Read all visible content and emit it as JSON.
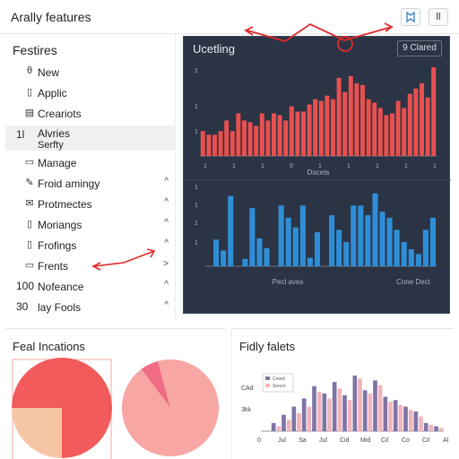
{
  "app": {
    "title": "Arally features"
  },
  "toolbar": {
    "btn1_icon": "bookmark-icon",
    "btn2_label": "ll"
  },
  "sidebar": {
    "title": "Festires",
    "items": [
      {
        "icon": "θ",
        "label": "New"
      },
      {
        "icon": "▯",
        "label": "Applic"
      },
      {
        "icon": "▤",
        "label": "Creariots"
      },
      {
        "num": "1l",
        "label": "Alvries",
        "label2": "Serfty"
      },
      {
        "icon": "▭",
        "label": "Manage"
      },
      {
        "icon": "✎",
        "label": "Froid amingy",
        "chev": "^"
      },
      {
        "icon": "✉",
        "label": "Protmectes",
        "chev": "^"
      },
      {
        "icon": "▯",
        "label": "Moriangs",
        "chev": "^"
      },
      {
        "icon": "▯",
        "label": "Frofings",
        "chev": "^"
      },
      {
        "icon": "▭",
        "label": "Frents",
        "chev": ">"
      },
      {
        "num": "100",
        "label": "Nofeance",
        "chev": "^"
      },
      {
        "num": "30",
        "label": "lay Fools",
        "chev": "^"
      }
    ]
  },
  "panel": {
    "title": "Ucetling",
    "button": "9 Clared",
    "top_xlabel": "Docets",
    "bottom_xlabel_left": "Pecl aves",
    "bottom_xlabel_right": "Cone Dect"
  },
  "cards": {
    "left_title": "Feal Incations",
    "right_title": "Fidly falets"
  },
  "colors": {
    "red": "#e8504f",
    "blue": "#2f8ed8",
    "dark": "#2b3445"
  },
  "chart_data": [
    {
      "type": "bar",
      "values": [
        14,
        12,
        12,
        14,
        20,
        14,
        24,
        20,
        19,
        17,
        24,
        20,
        24,
        23,
        20,
        28,
        25,
        25,
        29,
        32,
        31,
        34,
        32,
        44,
        36,
        45,
        41,
        40,
        32,
        30,
        27,
        23,
        24,
        31,
        27,
        35,
        38,
        41,
        33,
        50
      ],
      "ylim": [
        0,
        52
      ],
      "x_ticks": [
        "1",
        "1",
        "1",
        "0",
        "1",
        "1",
        "1",
        "1",
        "1"
      ]
    },
    {
      "type": "bar",
      "values": [
        0,
        22,
        13,
        58,
        0,
        6,
        48,
        23,
        15,
        0,
        50,
        40,
        32,
        50,
        7,
        28,
        0,
        42,
        30,
        20,
        50,
        50,
        42,
        60,
        45,
        40,
        30,
        20,
        14,
        10,
        30,
        40
      ],
      "ylim": [
        0,
        65
      ]
    },
    {
      "type": "pie",
      "slices": [
        {
          "value": 75,
          "color": "#f25b5b"
        },
        {
          "value": 25,
          "color": "#f7c6a6"
        }
      ]
    },
    {
      "type": "pie",
      "slices": [
        {
          "value": 94,
          "color": "#f7a6a3"
        },
        {
          "value": 6,
          "color": "#f06d85"
        }
      ]
    },
    {
      "type": "bar",
      "y_ticks": [
        "CAd",
        "3kk"
      ],
      "x_ticks": [
        "0",
        "Jul",
        "Sa",
        "Jul",
        "Cid",
        "Mid",
        "Cil",
        "Co",
        "Cil",
        "Al"
      ],
      "legend": [
        "Creed",
        "Srecre"
      ],
      "series": [
        {
          "color": "#7e74a6",
          "values": [
            0,
            10,
            20,
            30,
            40,
            55,
            46,
            60,
            44,
            68,
            50,
            62,
            42,
            38,
            30,
            24,
            10,
            6
          ]
        },
        {
          "color": "#f1b4bb",
          "values": [
            0,
            6,
            14,
            22,
            30,
            48,
            40,
            52,
            38,
            64,
            46,
            56,
            36,
            32,
            26,
            18,
            8,
            4
          ]
        }
      ]
    }
  ]
}
